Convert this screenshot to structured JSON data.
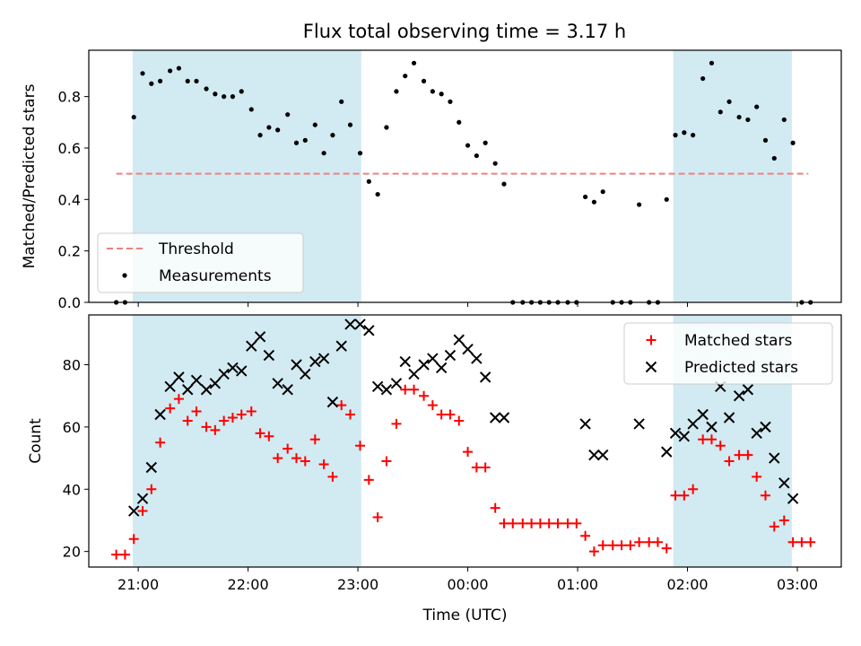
{
  "title": "Flux total observing time = 3.17 h",
  "colors": {
    "shade": "#add8e6",
    "threshold": "#f08080",
    "measurement": "#000000",
    "matched": "#ff0000",
    "predicted": "#000000",
    "frame": "#000000"
  },
  "chart_data": [
    {
      "type": "scatter",
      "ylabel": "Matched/Predicted stars",
      "ylim": [
        0,
        0.98
      ],
      "yticks": [
        0.0,
        0.2,
        0.4,
        0.6,
        0.8
      ],
      "ytick_labels": [
        "0.0",
        "0.2",
        "0.4",
        "0.6",
        "0.8"
      ],
      "xlim": [
        20.55,
        27.4
      ],
      "shaded_intervals": [
        [
          20.95,
          23.03
        ],
        [
          25.87,
          26.95
        ]
      ],
      "threshold": {
        "value": 0.5,
        "x_range": [
          20.8,
          27.1
        ],
        "style": "dashed"
      },
      "legend": {
        "placement": "lower-left",
        "entries": [
          "Threshold",
          "Measurements"
        ]
      },
      "series": [
        {
          "name": "Measurements",
          "marker": "dot",
          "x": [
            20.8,
            20.88,
            20.96,
            21.04,
            21.12,
            21.2,
            21.29,
            21.37,
            21.45,
            21.53,
            21.62,
            21.7,
            21.78,
            21.86,
            21.94,
            22.03,
            22.11,
            22.19,
            22.27,
            22.36,
            22.44,
            22.52,
            22.61,
            22.69,
            22.77,
            22.85,
            22.93,
            23.02,
            23.1,
            23.18,
            23.26,
            23.35,
            23.43,
            23.51,
            23.6,
            23.68,
            23.76,
            23.84,
            23.92,
            24.0,
            24.08,
            24.16,
            24.25,
            24.33,
            24.41,
            24.5,
            24.58,
            24.66,
            24.74,
            24.82,
            24.91,
            24.99,
            25.07,
            25.15,
            25.23,
            25.32,
            25.4,
            25.48,
            25.56,
            25.65,
            25.73,
            25.81,
            25.89,
            25.97,
            26.05,
            26.14,
            26.22,
            26.3,
            26.38,
            26.47,
            26.55,
            26.63,
            26.71,
            26.79,
            26.88,
            26.96,
            27.04,
            27.12
          ],
          "y": [
            0.0,
            0.0,
            0.72,
            0.89,
            0.85,
            0.86,
            0.9,
            0.91,
            0.86,
            0.86,
            0.83,
            0.81,
            0.8,
            0.8,
            0.82,
            0.75,
            0.65,
            0.68,
            0.67,
            0.73,
            0.62,
            0.63,
            0.69,
            0.58,
            0.65,
            0.78,
            0.69,
            0.58,
            0.47,
            0.42,
            0.68,
            0.82,
            0.88,
            0.93,
            0.86,
            0.82,
            0.81,
            0.78,
            0.7,
            0.61,
            0.57,
            0.62,
            0.54,
            0.46,
            0.0,
            0.0,
            0.0,
            0.0,
            0.0,
            0.0,
            0.0,
            0.0,
            0.41,
            0.39,
            0.43,
            0.0,
            0.0,
            0.0,
            0.38,
            0.0,
            0.0,
            0.4,
            0.65,
            0.66,
            0.65,
            0.87,
            0.93,
            0.74,
            0.78,
            0.72,
            0.71,
            0.76,
            0.63,
            0.56,
            0.71,
            0.62,
            0.0,
            0.0
          ]
        }
      ]
    },
    {
      "type": "scatter",
      "xlabel": "Time (UTC)",
      "ylabel": "Count",
      "ylim": [
        15,
        96
      ],
      "yticks": [
        20,
        40,
        60,
        80
      ],
      "ytick_labels": [
        "20",
        "40",
        "60",
        "80"
      ],
      "xlim": [
        20.55,
        27.4
      ],
      "xticks": [
        21,
        22,
        23,
        24,
        25,
        26,
        27
      ],
      "xtick_labels": [
        "21:00",
        "22:00",
        "23:00",
        "00:00",
        "01:00",
        "02:00",
        "03:00"
      ],
      "shaded_intervals": [
        [
          20.95,
          23.03
        ],
        [
          25.87,
          26.95
        ]
      ],
      "legend": {
        "placement": "top-right",
        "entries": [
          "Matched stars",
          "Predicted stars"
        ]
      },
      "series": [
        {
          "name": "Matched stars",
          "marker": "plus",
          "x": [
            20.8,
            20.88,
            20.96,
            21.04,
            21.12,
            21.2,
            21.29,
            21.37,
            21.45,
            21.53,
            21.62,
            21.7,
            21.78,
            21.86,
            21.94,
            22.03,
            22.11,
            22.19,
            22.27,
            22.36,
            22.44,
            22.52,
            22.61,
            22.69,
            22.77,
            22.85,
            22.93,
            23.02,
            23.1,
            23.18,
            23.26,
            23.35,
            23.43,
            23.51,
            23.6,
            23.68,
            23.76,
            23.84,
            23.92,
            24.0,
            24.08,
            24.16,
            24.25,
            24.33,
            24.41,
            24.5,
            24.58,
            24.66,
            24.74,
            24.82,
            24.91,
            24.99,
            25.07,
            25.15,
            25.23,
            25.32,
            25.4,
            25.48,
            25.56,
            25.65,
            25.73,
            25.81,
            25.89,
            25.97,
            26.05,
            26.14,
            26.22,
            26.3,
            26.38,
            26.47,
            26.55,
            26.63,
            26.71,
            26.79,
            26.88,
            26.96,
            27.04,
            27.12
          ],
          "y": [
            19,
            19,
            24,
            33,
            40,
            55,
            66,
            69,
            62,
            65,
            60,
            59,
            62,
            63,
            64,
            65,
            58,
            57,
            50,
            53,
            50,
            49,
            56,
            48,
            44,
            67,
            64,
            54,
            43,
            31,
            49,
            61,
            72,
            72,
            70,
            67,
            64,
            64,
            62,
            52,
            47,
            47,
            34,
            29,
            29,
            29,
            29,
            29,
            29,
            29,
            29,
            29,
            25,
            20,
            22,
            22,
            22,
            22,
            23,
            23,
            23,
            21,
            38,
            38,
            40,
            56,
            56,
            54,
            49,
            51,
            51,
            44,
            38,
            28,
            30,
            23,
            23,
            23
          ]
        },
        {
          "name": "Predicted stars",
          "marker": "x",
          "x": [
            20.96,
            21.04,
            21.12,
            21.2,
            21.29,
            21.37,
            21.45,
            21.53,
            21.62,
            21.7,
            21.78,
            21.86,
            21.94,
            22.03,
            22.11,
            22.19,
            22.27,
            22.36,
            22.44,
            22.52,
            22.61,
            22.69,
            22.77,
            22.85,
            22.93,
            23.02,
            23.1,
            23.18,
            23.26,
            23.35,
            23.43,
            23.51,
            23.6,
            23.68,
            23.76,
            23.84,
            23.92,
            24.0,
            24.08,
            24.16,
            24.25,
            24.33,
            25.07,
            25.15,
            25.23,
            25.56,
            25.81,
            25.89,
            25.97,
            26.05,
            26.14,
            26.22,
            26.3,
            26.38,
            26.47,
            26.55,
            26.63,
            26.71,
            26.79,
            26.88,
            26.96
          ],
          "y": [
            33,
            37,
            47,
            64,
            73,
            76,
            72,
            75,
            72,
            74,
            77,
            79,
            78,
            86,
            89,
            83,
            74,
            72,
            80,
            77,
            81,
            82,
            68,
            86,
            93,
            93,
            91,
            73,
            72,
            74,
            81,
            77,
            80,
            82,
            79,
            83,
            88,
            85,
            82,
            76,
            63,
            63,
            61,
            51,
            51,
            61,
            52,
            58,
            57,
            61,
            64,
            60,
            73,
            63,
            70,
            72,
            58,
            60,
            50,
            42,
            37
          ]
        }
      ]
    }
  ]
}
